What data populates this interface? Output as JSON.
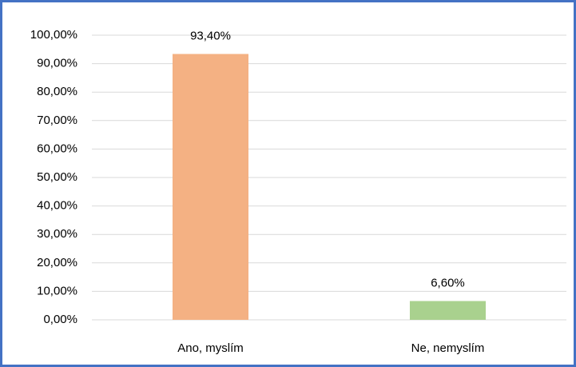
{
  "chart_data": {
    "type": "bar",
    "categories": [
      "Ano, myslím",
      "Ne, nemyslím"
    ],
    "values": [
      93.4,
      6.6
    ],
    "value_labels": [
      "93,40%",
      "6,60%"
    ],
    "colors": [
      "#f4b183",
      "#a9d18e"
    ],
    "ylim": [
      0,
      100
    ],
    "yticks": [
      {
        "value": 0,
        "label": "0,00%"
      },
      {
        "value": 10,
        "label": "10,00%"
      },
      {
        "value": 20,
        "label": "20,00%"
      },
      {
        "value": 30,
        "label": "30,00%"
      },
      {
        "value": 40,
        "label": "40,00%"
      },
      {
        "value": 50,
        "label": "50,00%"
      },
      {
        "value": 60,
        "label": "60,00%"
      },
      {
        "value": 70,
        "label": "70,00%"
      },
      {
        "value": 80,
        "label": "80,00%"
      },
      {
        "value": 90,
        "label": "90,00%"
      },
      {
        "value": 100,
        "label": "100,00%"
      }
    ],
    "grid": true
  }
}
